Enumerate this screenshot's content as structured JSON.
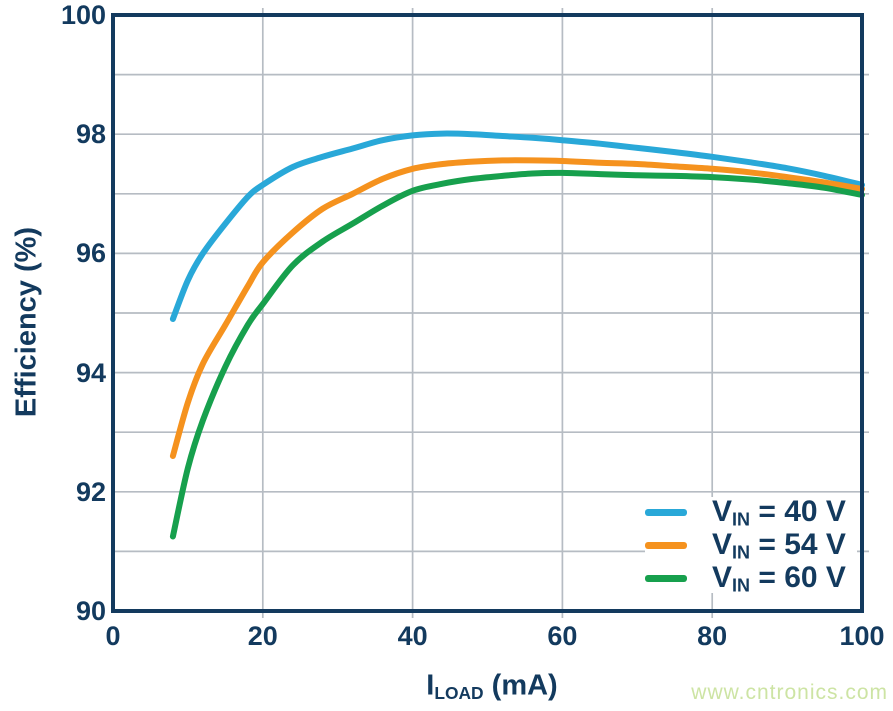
{
  "watermark": {
    "text": "www.cntronics.com",
    "color": "#cde4a4"
  },
  "chart_data": {
    "type": "line",
    "title": "",
    "ylabel": "Efficiency (%)",
    "xlabel_parts": {
      "main": "I",
      "sub": "LOAD",
      "rest": " (mA)"
    },
    "xlim": [
      0,
      100
    ],
    "ylim": [
      90,
      100
    ],
    "x_ticks": [
      0,
      20,
      40,
      60,
      80,
      100
    ],
    "y_ticks": [
      90,
      92,
      94,
      96,
      98,
      100
    ],
    "x_grid_step": 20,
    "y_grid_step": 1,
    "grid": true,
    "legend_position": "lower right",
    "colors": {
      "frame": "#133a5e",
      "grid": "#b6bcc3",
      "text": "#133a5e"
    },
    "series": [
      {
        "name": "VIN = 40 V",
        "label_parts": {
          "main": "V",
          "sub": "IN",
          "rest": " = 40 V"
        },
        "color": "#29a8d8",
        "points": [
          [
            8,
            94.9
          ],
          [
            10,
            95.55
          ],
          [
            12,
            96.0
          ],
          [
            15,
            96.5
          ],
          [
            18,
            96.95
          ],
          [
            20,
            97.15
          ],
          [
            24,
            97.45
          ],
          [
            28,
            97.62
          ],
          [
            32,
            97.76
          ],
          [
            36,
            97.9
          ],
          [
            40,
            97.98
          ],
          [
            44,
            98.01
          ],
          [
            48,
            98.0
          ],
          [
            52,
            97.97
          ],
          [
            56,
            97.94
          ],
          [
            60,
            97.9
          ],
          [
            65,
            97.84
          ],
          [
            70,
            97.77
          ],
          [
            75,
            97.7
          ],
          [
            80,
            97.62
          ],
          [
            85,
            97.53
          ],
          [
            90,
            97.43
          ],
          [
            95,
            97.3
          ],
          [
            100,
            97.15
          ]
        ]
      },
      {
        "name": "VIN = 54 V",
        "label_parts": {
          "main": "V",
          "sub": "IN",
          "rest": " = 54 V"
        },
        "color": "#f5921e",
        "points": [
          [
            8,
            92.6
          ],
          [
            10,
            93.5
          ],
          [
            12,
            94.15
          ],
          [
            15,
            94.8
          ],
          [
            18,
            95.45
          ],
          [
            20,
            95.85
          ],
          [
            24,
            96.35
          ],
          [
            28,
            96.75
          ],
          [
            32,
            97.0
          ],
          [
            36,
            97.25
          ],
          [
            40,
            97.42
          ],
          [
            44,
            97.5
          ],
          [
            48,
            97.54
          ],
          [
            52,
            97.56
          ],
          [
            56,
            97.56
          ],
          [
            60,
            97.55
          ],
          [
            65,
            97.52
          ],
          [
            70,
            97.5
          ],
          [
            75,
            97.46
          ],
          [
            80,
            97.42
          ],
          [
            85,
            97.36
          ],
          [
            90,
            97.28
          ],
          [
            95,
            97.19
          ],
          [
            100,
            97.08
          ]
        ]
      },
      {
        "name": "VIN = 60 V",
        "label_parts": {
          "main": "V",
          "sub": "IN",
          "rest": " = 60 V"
        },
        "color": "#17a04d",
        "points": [
          [
            8,
            91.25
          ],
          [
            10,
            92.4
          ],
          [
            12,
            93.2
          ],
          [
            15,
            94.1
          ],
          [
            18,
            94.8
          ],
          [
            20,
            95.15
          ],
          [
            24,
            95.8
          ],
          [
            28,
            96.2
          ],
          [
            32,
            96.5
          ],
          [
            36,
            96.8
          ],
          [
            40,
            97.05
          ],
          [
            44,
            97.17
          ],
          [
            48,
            97.25
          ],
          [
            52,
            97.3
          ],
          [
            56,
            97.34
          ],
          [
            60,
            97.35
          ],
          [
            65,
            97.33
          ],
          [
            70,
            97.31
          ],
          [
            75,
            97.3
          ],
          [
            80,
            97.28
          ],
          [
            85,
            97.24
          ],
          [
            90,
            97.18
          ],
          [
            95,
            97.1
          ],
          [
            100,
            96.98
          ]
        ]
      }
    ]
  }
}
